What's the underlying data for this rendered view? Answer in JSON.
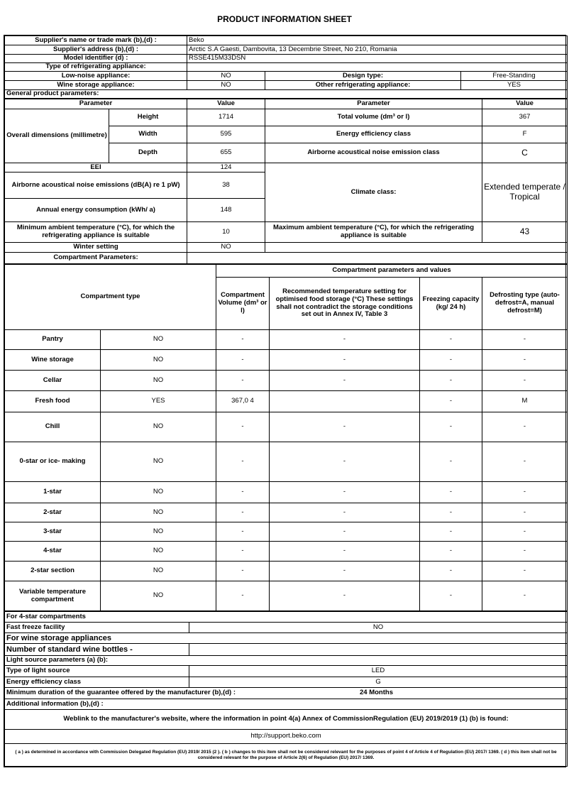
{
  "title": "PRODUCT INFORMATION SHEET",
  "supplier": {
    "name_label": "Supplier's name or trade mark (b),(d) :",
    "name_value": "Beko",
    "address_label": "Supplier's address (b),(d) :",
    "address_value": "Arctic S.A  Gaesti, Dambovita, 13 Decembrie Street, No 210, Romania",
    "model_label": "Model identifier (d) :",
    "model_value": "RSSE415M33DSN",
    "type_label": "Type of refrigerating appliance:",
    "low_noise_label": "Low-noise appliance:",
    "low_noise_value": "NO",
    "design_label": "Design type:",
    "design_value": "Free-Standing",
    "wine_label": "Wine storage appliance:",
    "wine_value": "NO",
    "other_label": "Other refrigerating appliance:",
    "other_value": "YES"
  },
  "general": {
    "heading": "General product parameters:",
    "param_header": "Parameter",
    "value_header": "Value",
    "dimensions_label": "Overall dimensions (millimetre)",
    "height_label": "Height",
    "height_value": "1714",
    "width_label": "Width",
    "width_value": "595",
    "depth_label": "Depth",
    "depth_value": "655",
    "total_volume_label": "Total volume (dm³ or l)",
    "total_volume_value": "367",
    "energy_class_label": "Energy efficiency class",
    "energy_class_value": "F",
    "noise_class_label": "Airborne acoustical noise emission class",
    "noise_class_value": "C",
    "eei_label": "EEI",
    "eei_value": "124",
    "noise_label": "Airborne acoustical noise emissions (dB(A) re 1 pW)",
    "noise_value": "38",
    "climate_label": "Climate class:",
    "climate_value": "Extended temperate / Tropical",
    "annual_label": "Annual energy consumption (kWh/ a)",
    "annual_value": "148",
    "min_temp_label": "Minimum ambient temperature (°C), for which the refrigerating appliance is suitable",
    "min_temp_value": "10",
    "max_temp_label": "Maximum ambient temperature (°C), for which the refrigerating appliance is suitable",
    "max_temp_value": "43",
    "winter_label": "Winter setting",
    "winter_value": "NO"
  },
  "compartments": {
    "heading": "Compartment Parameters:",
    "group_header": "Compartment parameters and values",
    "type_header": "Compartment type",
    "volume_header": "Compartment Volume (dm³ or l)",
    "temp_header": "Recommended temperature setting for optimised food storage (°C) These settings shall not contradict the storage conditions set out in Annex IV, Table 3",
    "freezing_header": "Freezing capacity (kg/ 24 h)",
    "defrost_header": "Defrosting type (auto-defrost=A, manual defrost=M)",
    "rows": [
      {
        "name": "Pantry",
        "present": "NO",
        "volume": "-",
        "temp": "-",
        "freezing": "-",
        "defrost": "-"
      },
      {
        "name": "Wine storage",
        "present": "NO",
        "volume": "-",
        "temp": "-",
        "freezing": "-",
        "defrost": "-"
      },
      {
        "name": "Cellar",
        "present": "NO",
        "volume": "-",
        "temp": "-",
        "freezing": "-",
        "defrost": "-"
      },
      {
        "name": "Fresh food",
        "present": "YES",
        "volume": "367,0 4",
        "temp": "",
        "freezing": "-",
        "defrost": "M"
      },
      {
        "name": "Chill",
        "present": "NO",
        "volume": "-",
        "temp": "-",
        "freezing": "-",
        "defrost": "-"
      },
      {
        "name": "0-star or ice- making",
        "present": "NO",
        "volume": "-",
        "temp": "-",
        "freezing": "-",
        "defrost": "-"
      },
      {
        "name": "1-star",
        "present": "NO",
        "volume": "-",
        "temp": "-",
        "freezing": "-",
        "defrost": "-"
      },
      {
        "name": "2-star",
        "present": "NO",
        "volume": "-",
        "temp": "-",
        "freezing": "-",
        "defrost": "-"
      },
      {
        "name": "3-star",
        "present": "NO",
        "volume": "-",
        "temp": "-",
        "freezing": "-",
        "defrost": "-"
      },
      {
        "name": "4-star",
        "present": "NO",
        "volume": "-",
        "temp": "-",
        "freezing": "-",
        "defrost": "-"
      },
      {
        "name": "2-star section",
        "present": "NO",
        "volume": "-",
        "temp": "-",
        "freezing": "-",
        "defrost": "-"
      },
      {
        "name": "Variable temperature compartment",
        "present": "NO",
        "volume": "-",
        "temp": "-",
        "freezing": "-",
        "defrost": "-"
      }
    ]
  },
  "other": {
    "four_star_heading": "For 4-star compartments",
    "fast_freeze_label": "Fast freeze facility",
    "fast_freeze_value": "NO",
    "wine_heading": "For wine storage appliances",
    "bottles_label": "Number of standard wine bottles -",
    "light_heading": "Light source parameters (a) (b):",
    "light_type_label": "Type of light source",
    "light_type_value": "LED",
    "light_class_label": "Energy efficiency class",
    "light_class_value": "G",
    "guarantee_label": "Minimum duration of the guarantee offered by the manufacturer (b),(d) :",
    "guarantee_value": "24 Months",
    "additional_label": "Additional information (b),(d) :",
    "weblink_label": "Weblink to the manufacturer's website, where the information in point 4(a) Annex of CommissionRegulation (EU) 2019/2019 (1) (b) is found:",
    "weblink_value": "http://support.beko.com",
    "footnote": "( a ) as determined in accordance with Commission Delegated Regulation (EU) 2019/ 2015 (2 ). ( b ) changes to this item shall not be considered relevant for the purposes of point 4 of Article 4 of Regulation (EU) 2017/ 1369. ( d ) this item shall not be considered relevant for the purpose of Article 2(6) of Regulation (EU) 2017/ 1369."
  }
}
